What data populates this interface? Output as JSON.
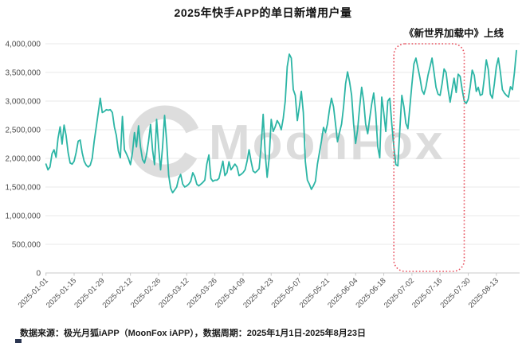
{
  "title": "2025年快手APP的单日新增用户量",
  "annotation": {
    "text": "《新世界加载中》上线"
  },
  "watermark": {
    "text": "MoonFox",
    "logo_icon": "moonfox-circle-logo"
  },
  "footer": {
    "text": "数据来源：极光月狐iAPP（MoonFox iAPP），数据周期：2025年1月1日-2025年8月23日"
  },
  "colors": {
    "line": "#2cb5a5",
    "highlight": "#e8505e",
    "grid": "#eaeaea",
    "axis": "#c9c9c9",
    "axis_text": "#4d4d4d",
    "watermark": "#dadada",
    "title_text": "#111111"
  },
  "chart_data": {
    "type": "line",
    "title": "2025年快手APP的单日新增用户量",
    "xlabel": "",
    "ylabel": "",
    "ylim": [
      0,
      4000000
    ],
    "grid": "horizontal",
    "legend": "none",
    "x_start_date": "2025-01-01",
    "x_end_date": "2025-08-23",
    "x_tick_labels": [
      "2025-01-01",
      "2025-01-15",
      "2025-01-29",
      "2025-02-12",
      "2025-02-26",
      "2025-03-12",
      "2025-03-26",
      "2025-04-09",
      "2025-04-23",
      "2025-05-07",
      "2025-05-21",
      "2025-06-04",
      "2025-06-18",
      "2025-07-02",
      "2025-07-16",
      "2025-07-30",
      "2025-08-13"
    ],
    "y_tick_labels": [
      "0",
      "500,000",
      "1,000,000",
      "1,500,000",
      "2,000,000",
      "2,500,000",
      "3,000,000",
      "3,500,000",
      "4,000,000"
    ],
    "highlight_region": {
      "label": "《新世界加载中》上线",
      "start_date": "2025-06-23",
      "end_date": "2025-07-28"
    },
    "series": [
      {
        "name": "单日新增用户量",
        "values": [
          1900000,
          1800000,
          1850000,
          2080000,
          2150000,
          2020000,
          2350000,
          2550000,
          2250000,
          2580000,
          2400000,
          2100000,
          1920000,
          1900000,
          1950000,
          2100000,
          2300000,
          2320000,
          2100000,
          1950000,
          1880000,
          1850000,
          1880000,
          2000000,
          2300000,
          2550000,
          2800000,
          3050000,
          2800000,
          2820000,
          2850000,
          2840000,
          2850000,
          2800000,
          2550000,
          2400000,
          2130000,
          2010000,
          2730000,
          2150000,
          2080000,
          2000000,
          1890000,
          2100000,
          2450000,
          2200000,
          2570000,
          2200000,
          1980000,
          1920000,
          2060000,
          2300000,
          2590000,
          2150000,
          1890000,
          2680000,
          2200000,
          1800000,
          2200000,
          2750000,
          2300000,
          1710000,
          1480000,
          1400000,
          1450000,
          1500000,
          1650000,
          1720000,
          1550000,
          1500000,
          1520000,
          1550000,
          1600000,
          1750000,
          1680000,
          1550000,
          1520000,
          1550000,
          1580000,
          1620000,
          1900000,
          2060000,
          1650000,
          1600000,
          1620000,
          1620000,
          1650000,
          1800000,
          1950000,
          1700000,
          1750000,
          1940000,
          1800000,
          1850000,
          1900000,
          1850000,
          1700000,
          1720000,
          1750000,
          1800000,
          1950000,
          2150000,
          1950000,
          1780000,
          1750000,
          1780000,
          1820000,
          2200000,
          2770000,
          2100000,
          1670000,
          2000000,
          2680000,
          2470000,
          2550000,
          2660000,
          2600000,
          2500000,
          2700000,
          3000000,
          3600000,
          3820000,
          3750000,
          3200000,
          3100000,
          2660000,
          2900000,
          3170000,
          2800000,
          1950000,
          1620000,
          1550000,
          1460000,
          1520000,
          1600000,
          1900000,
          2100000,
          2300000,
          2540000,
          2450000,
          2600000,
          2850000,
          3050000,
          2900000,
          2600000,
          2290000,
          2450000,
          2600000,
          2900000,
          3300000,
          3510000,
          3330000,
          3100000,
          2600000,
          2260000,
          2500000,
          2900000,
          3240000,
          3000000,
          2600000,
          2430000,
          2700000,
          2950000,
          3140000,
          2800000,
          2200000,
          2010000,
          3070000,
          2800000,
          2470000,
          3000000,
          3050000,
          2600000,
          2200000,
          1890000,
          1870000,
          2500000,
          3100000,
          2900000,
          2610000,
          2520000,
          2900000,
          3300000,
          3650000,
          3750000,
          3580000,
          3400000,
          3190000,
          3120000,
          3250000,
          3450000,
          3600000,
          3750000,
          3500000,
          3240000,
          3120000,
          3100000,
          3300000,
          3560000,
          3500000,
          3200000,
          2980000,
          3200000,
          3400000,
          3150000,
          3470000,
          3430000,
          3200000,
          3000000,
          2960000,
          3030000,
          3250000,
          3540000,
          3450000,
          3170000,
          3240000,
          3100000,
          3120000,
          3400000,
          3720000,
          3550000,
          3120000,
          3050000,
          3300000,
          3600000,
          3750000,
          3500000,
          3200000,
          3140000,
          3100000,
          3070000,
          3250000,
          3200000,
          3500000,
          3880000
        ]
      }
    ]
  }
}
